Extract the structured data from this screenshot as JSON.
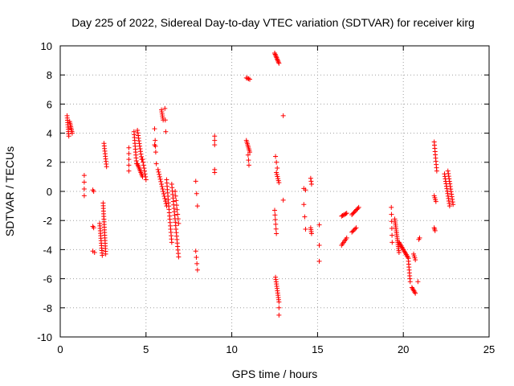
{
  "chart_data": {
    "type": "scatter",
    "title": "Day 225 of 2022, Sidereal Day-to-day VTEC variation (SDTVAR) for receiver kirg",
    "xlabel": "GPS time / hours",
    "ylabel": "SDTVAR / TECUs",
    "xlim": [
      0,
      25
    ],
    "ylim": [
      -10,
      10
    ],
    "xticks": [
      0,
      5,
      10,
      15,
      20,
      25
    ],
    "yticks": [
      -10,
      -8,
      -6,
      -4,
      -2,
      0,
      2,
      4,
      6,
      8,
      10
    ],
    "grid": true,
    "marker": "+",
    "color": "#ff0000",
    "segments": [
      {
        "x0": 0.4,
        "y0": 5.2,
        "x1": 0.5,
        "y1": 3.8,
        "n": 10
      },
      {
        "x0": 0.55,
        "y0": 4.8,
        "x1": 0.7,
        "y1": 4.0,
        "n": 8
      },
      {
        "x0": 1.4,
        "y0": 1.1,
        "x1": 1.4,
        "y1": -0.3,
        "n": 4
      },
      {
        "x0": 1.9,
        "y0": 0.1,
        "x1": 1.95,
        "y1": 0.0,
        "n": 2
      },
      {
        "x0": 1.9,
        "y0": -2.4,
        "x1": 1.95,
        "y1": -2.5,
        "n": 2
      },
      {
        "x0": 1.9,
        "y0": -4.1,
        "x1": 2.0,
        "y1": -4.2,
        "n": 2
      },
      {
        "x0": 2.3,
        "y0": -2.2,
        "x1": 2.45,
        "y1": -4.4,
        "n": 14
      },
      {
        "x0": 2.5,
        "y0": -0.8,
        "x1": 2.65,
        "y1": -4.3,
        "n": 20
      },
      {
        "x0": 2.55,
        "y0": 3.3,
        "x1": 2.7,
        "y1": 1.7,
        "n": 10
      },
      {
        "x0": 4.0,
        "y0": 3.0,
        "x1": 4.0,
        "y1": 1.4,
        "n": 5
      },
      {
        "x0": 4.3,
        "y0": 4.1,
        "x1": 4.45,
        "y1": 1.9,
        "n": 12
      },
      {
        "x0": 4.5,
        "y0": 4.2,
        "x1": 4.75,
        "y1": 2.2,
        "n": 12
      },
      {
        "x0": 4.5,
        "y0": 1.9,
        "x1": 4.8,
        "y1": 1.0,
        "n": 10
      },
      {
        "x0": 4.8,
        "y0": 2.2,
        "x1": 5.0,
        "y1": 0.8,
        "n": 8
      },
      {
        "x0": 5.5,
        "y0": 4.3,
        "x1": 5.6,
        "y1": 1.9,
        "n": 4
      },
      {
        "x0": 5.5,
        "y0": 3.2,
        "x1": 5.55,
        "y1": 3.1,
        "n": 2
      },
      {
        "x0": 5.9,
        "y0": 5.6,
        "x1": 6.0,
        "y1": 4.9,
        "n": 6
      },
      {
        "x0": 6.1,
        "y0": 5.7,
        "x1": 6.15,
        "y1": 4.1,
        "n": 3
      },
      {
        "x0": 5.7,
        "y0": 1.5,
        "x1": 6.2,
        "y1": -1.0,
        "n": 16
      },
      {
        "x0": 6.2,
        "y0": 0.8,
        "x1": 6.5,
        "y1": -3.5,
        "n": 20
      },
      {
        "x0": 6.5,
        "y0": 0.5,
        "x1": 6.9,
        "y1": -4.5,
        "n": 22
      },
      {
        "x0": 6.7,
        "y0": 0.0,
        "x1": 6.9,
        "y1": -2.2,
        "n": 8
      },
      {
        "x0": 7.9,
        "y0": 0.7,
        "x1": 8.0,
        "y1": -1.0,
        "n": 3
      },
      {
        "x0": 7.9,
        "y0": -4.1,
        "x1": 8.0,
        "y1": -5.4,
        "n": 4
      },
      {
        "x0": 9.0,
        "y0": 3.8,
        "x1": 9.0,
        "y1": 3.2,
        "n": 3
      },
      {
        "x0": 9.0,
        "y0": 1.5,
        "x1": 9.0,
        "y1": 1.3,
        "n": 2
      },
      {
        "x0": 10.85,
        "y0": 7.8,
        "x1": 11.05,
        "y1": 7.7,
        "n": 4
      },
      {
        "x0": 10.85,
        "y0": 3.5,
        "x1": 11.05,
        "y1": 2.7,
        "n": 8
      },
      {
        "x0": 10.95,
        "y0": 2.5,
        "x1": 11.0,
        "y1": 1.8,
        "n": 3
      },
      {
        "x0": 12.5,
        "y0": 9.5,
        "x1": 12.75,
        "y1": 8.8,
        "n": 10
      },
      {
        "x0": 12.55,
        "y0": 2.4,
        "x1": 12.65,
        "y1": 1.6,
        "n": 3
      },
      {
        "x0": 12.6,
        "y0": 1.3,
        "x1": 12.75,
        "y1": 0.6,
        "n": 6
      },
      {
        "x0": 12.5,
        "y0": -1.3,
        "x1": 12.6,
        "y1": -2.9,
        "n": 6
      },
      {
        "x0": 12.55,
        "y0": -5.9,
        "x1": 12.75,
        "y1": -7.6,
        "n": 12
      },
      {
        "x0": 12.75,
        "y0": -8.0,
        "x1": 12.75,
        "y1": -8.5,
        "n": 2
      },
      {
        "x0": 13.0,
        "y0": 5.2,
        "x1": 13.0,
        "y1": 5.2,
        "n": 1
      },
      {
        "x0": 13.0,
        "y0": -0.6,
        "x1": 13.0,
        "y1": -0.6,
        "n": 1
      },
      {
        "x0": 14.2,
        "y0": 0.2,
        "x1": 14.3,
        "y1": 0.1,
        "n": 2
      },
      {
        "x0": 14.2,
        "y0": -0.9,
        "x1": 14.3,
        "y1": -2.6,
        "n": 3
      },
      {
        "x0": 14.6,
        "y0": 0.9,
        "x1": 14.65,
        "y1": 0.5,
        "n": 3
      },
      {
        "x0": 14.6,
        "y0": -2.5,
        "x1": 14.65,
        "y1": -2.9,
        "n": 4
      },
      {
        "x0": 15.1,
        "y0": -2.3,
        "x1": 15.1,
        "y1": -2.3,
        "n": 1
      },
      {
        "x0": 15.1,
        "y0": -3.7,
        "x1": 15.1,
        "y1": -4.8,
        "n": 2
      },
      {
        "x0": 16.4,
        "y0": -1.7,
        "x1": 16.7,
        "y1": -1.5,
        "n": 6
      },
      {
        "x0": 16.4,
        "y0": -3.7,
        "x1": 16.7,
        "y1": -3.2,
        "n": 6
      },
      {
        "x0": 17.0,
        "y0": -1.6,
        "x1": 17.4,
        "y1": -1.1,
        "n": 8
      },
      {
        "x0": 17.0,
        "y0": -2.8,
        "x1": 17.25,
        "y1": -2.5,
        "n": 5
      },
      {
        "x0": 19.3,
        "y0": -1.1,
        "x1": 19.35,
        "y1": -3.5,
        "n": 6
      },
      {
        "x0": 19.5,
        "y0": -1.9,
        "x1": 19.75,
        "y1": -4.2,
        "n": 18
      },
      {
        "x0": 19.75,
        "y0": -3.5,
        "x1": 20.3,
        "y1": -4.6,
        "n": 14
      },
      {
        "x0": 20.3,
        "y0": -4.8,
        "x1": 20.4,
        "y1": -6.2,
        "n": 8
      },
      {
        "x0": 20.6,
        "y0": -4.3,
        "x1": 20.7,
        "y1": -4.7,
        "n": 4
      },
      {
        "x0": 20.5,
        "y0": -6.6,
        "x1": 20.7,
        "y1": -7.0,
        "n": 6
      },
      {
        "x0": 20.85,
        "y0": -6.2,
        "x1": 20.85,
        "y1": -6.2,
        "n": 1
      },
      {
        "x0": 20.9,
        "y0": -3.3,
        "x1": 20.95,
        "y1": -3.2,
        "n": 2
      },
      {
        "x0": 21.8,
        "y0": -0.3,
        "x1": 21.9,
        "y1": -0.7,
        "n": 4
      },
      {
        "x0": 21.8,
        "y0": -2.5,
        "x1": 21.85,
        "y1": -2.7,
        "n": 3
      },
      {
        "x0": 21.8,
        "y0": 3.4,
        "x1": 21.95,
        "y1": 1.4,
        "n": 10
      },
      {
        "x0": 22.4,
        "y0": 1.2,
        "x1": 22.7,
        "y1": -1.0,
        "n": 14
      },
      {
        "x0": 22.6,
        "y0": 1.4,
        "x1": 22.9,
        "y1": -0.9,
        "n": 14
      }
    ]
  }
}
